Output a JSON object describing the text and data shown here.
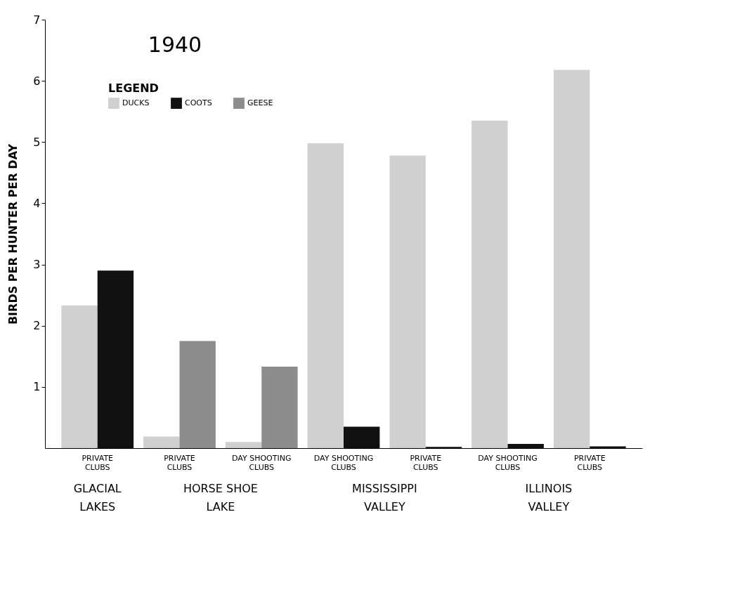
{
  "chart_data": {
    "type": "bar",
    "title": "1940",
    "ylabel": "BIRDS PER HUNTER PER DAY",
    "legend_title": "LEGEND",
    "categories": [
      "PRIVATE CLUBS",
      "PRIVATE CLUBS",
      "DAY SHOOTING CLUBS",
      "DAY SHOOTING CLUBS",
      "PRIVATE CLUBS",
      "DAY SHOOTING CLUBS",
      "PRIVATE CLUBS"
    ],
    "series": [
      {
        "name": "DUCKS",
        "color": "#d0d0d0",
        "values": [
          2.33,
          0.19,
          0.1,
          4.98,
          4.78,
          5.35,
          6.18
        ]
      },
      {
        "name": "COOTS",
        "color": "#111111",
        "values": [
          2.9,
          null,
          null,
          0.35,
          0.02,
          0.07,
          0.03
        ]
      },
      {
        "name": "GEESE",
        "color": "#8c8c8c",
        "values": [
          null,
          1.75,
          1.33,
          null,
          null,
          null,
          null
        ]
      }
    ],
    "annotations": [
      "GLACIAL LAKES",
      "HORSE SHOE LAKE",
      "MISSISSIPPI VALLEY",
      "ILLINOIS VALLEY"
    ],
    "ylim": [
      0,
      7
    ],
    "yticks": [
      1,
      2,
      3,
      4,
      5,
      6,
      7
    ],
    "grid": false,
    "legend": "top left"
  }
}
